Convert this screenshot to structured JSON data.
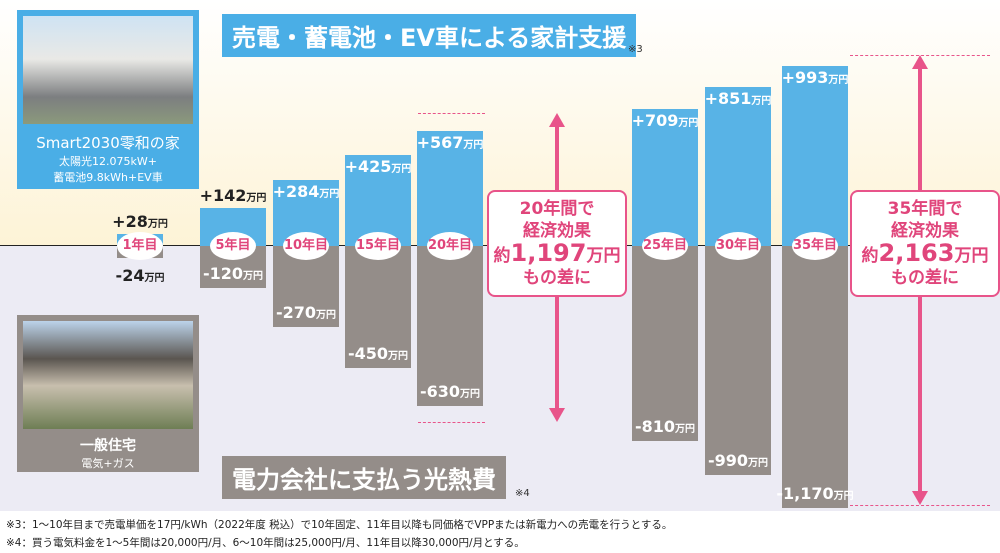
{
  "chart_data": {
    "type": "bar",
    "title": "売電・蓄電池・EV車による家計支援",
    "title_note": "※3",
    "bottom_title": "電力会社に支払う光熱費",
    "bottom_note": "※4",
    "unit": "万円",
    "categories": [
      "1年目",
      "5年目",
      "10年目",
      "15年目",
      "20年目",
      "25年目",
      "30年目",
      "35年目"
    ],
    "series": [
      {
        "name": "売電・蓄電池・EV車による家計支援",
        "color": "#58b3e6",
        "values": [
          28,
          142,
          284,
          425,
          567,
          709,
          851,
          993
        ],
        "labels": [
          "+28",
          "+142",
          "+284",
          "+425",
          "+567",
          "+709",
          "+851",
          "+993"
        ]
      },
      {
        "name": "電力会社に支払う光熱費",
        "color": "#948d89",
        "values": [
          -24,
          -120,
          -270,
          -450,
          -630,
          -810,
          -990,
          -1170
        ],
        "labels": [
          "-24",
          "-120",
          "-270",
          "-450",
          "-630",
          "-810",
          "-990",
          "-1,170"
        ]
      }
    ],
    "annotations": [
      {
        "line1": "20年間で",
        "line2": "経済効果",
        "prefix": "約",
        "value": "1,197",
        "suffix": "万円",
        "line4": "もの差に"
      },
      {
        "line1": "35年間で",
        "line2": "経済効果",
        "prefix": "約",
        "value": "2,163",
        "suffix": "万円",
        "line4": "もの差に"
      }
    ]
  },
  "house_smart": {
    "name": "Smart2030零和の家",
    "spec1": "太陽光12.075kW+",
    "spec2": "蓄電池9.8kWh+EV車"
  },
  "house_normal": {
    "name": "一般住宅",
    "spec": "電気+ガス"
  },
  "footnotes": [
    "※3：1～10年目まで売電単価を17円/kWh（2022年度 税込）で10年固定、11年目以降も同価格でVPPまたは新電力への売電を行うとする。",
    "※4：買う電気料金を1～5年間は20,000円/月、6～10年間は25,000円/月、11年目以降30,000円/月とする。"
  ],
  "colors": {
    "positive": "#58b3e6",
    "negative": "#948d89",
    "accent": "#e8548a"
  }
}
